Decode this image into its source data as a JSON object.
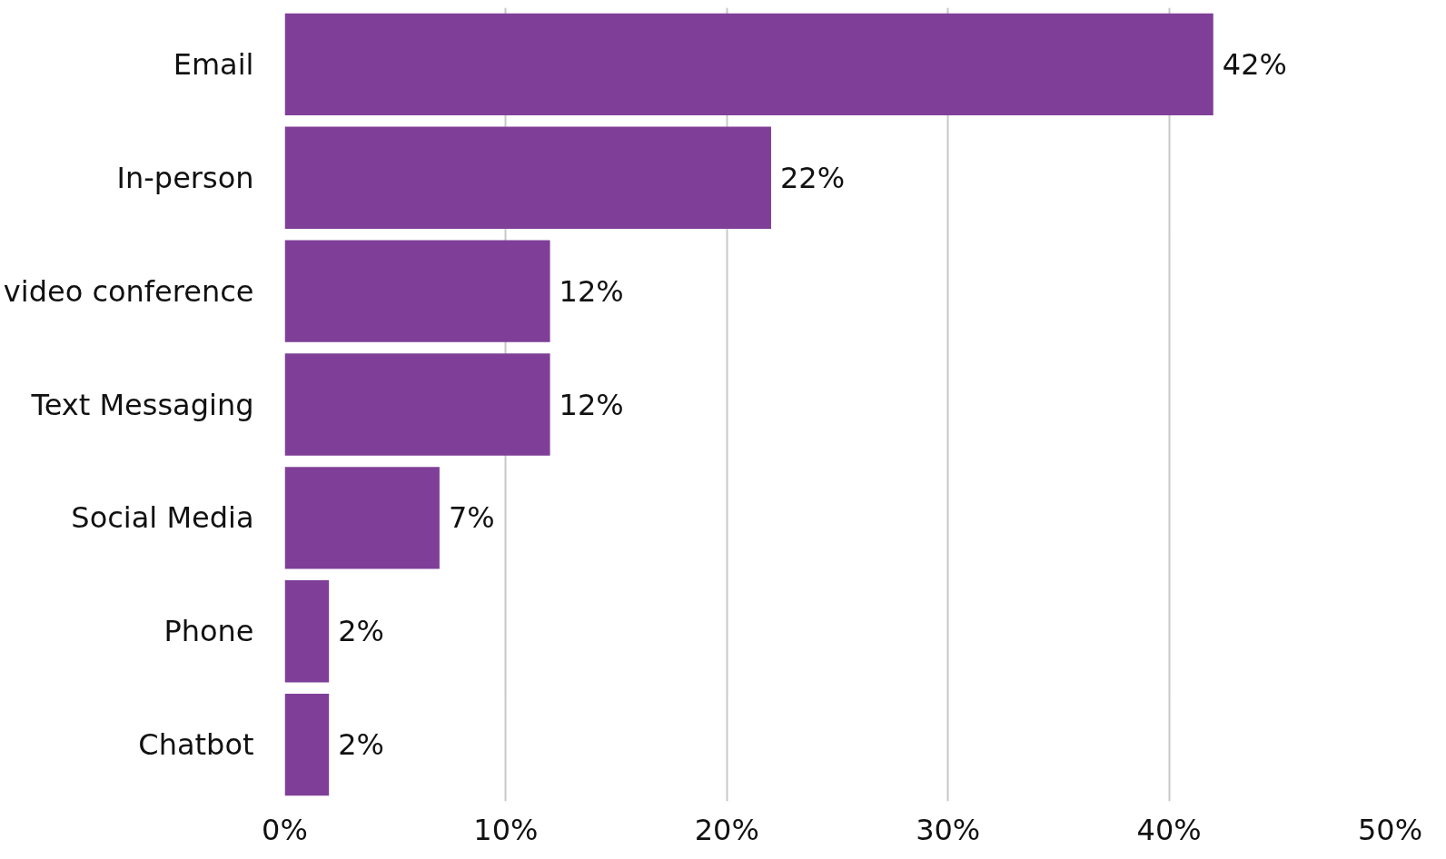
{
  "chart_data": {
    "type": "bar",
    "orientation": "horizontal",
    "categories": [
      "Email",
      "In-person",
      "video conference",
      "Text Messaging",
      "Social Media",
      "Phone",
      "Chatbot"
    ],
    "values": [
      42,
      22,
      12,
      12,
      7,
      2,
      2
    ],
    "value_labels": [
      "42%",
      "22%",
      "12%",
      "12%",
      "7%",
      "2%",
      "2%"
    ],
    "color": "#7f3f98",
    "xlim": [
      0,
      50
    ],
    "xticks": [
      {
        "value": 0,
        "label": "0%"
      },
      {
        "value": 10,
        "label": "10%"
      },
      {
        "value": 20,
        "label": "20%"
      },
      {
        "value": 30,
        "label": "30%"
      },
      {
        "value": 40,
        "label": "40%"
      },
      {
        "value": 50,
        "label": "50%"
      }
    ],
    "grid": "x"
  }
}
